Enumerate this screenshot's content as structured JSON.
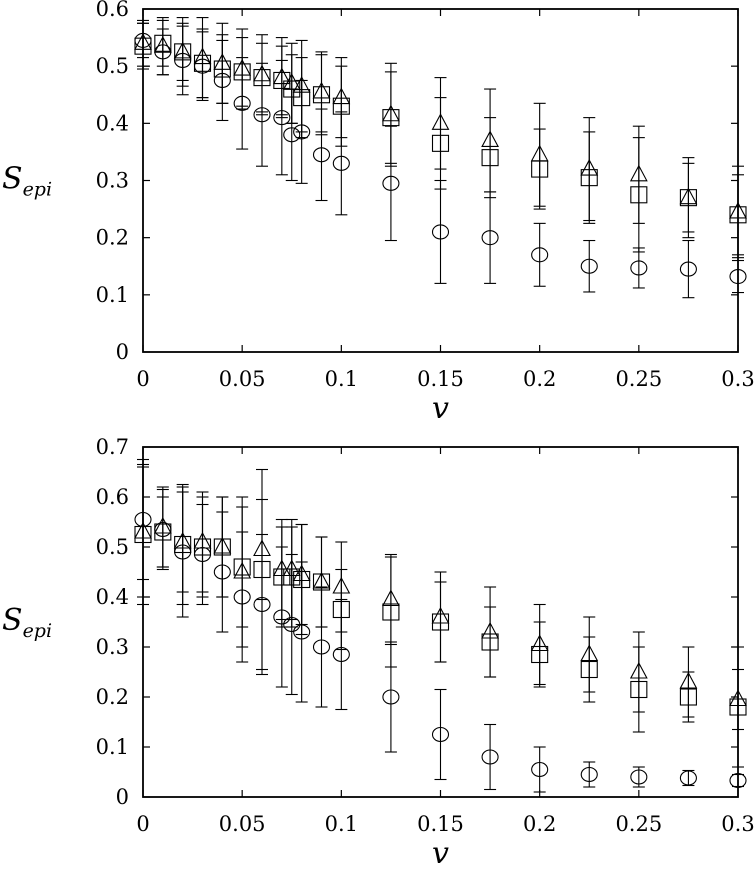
{
  "chart_data": [
    {
      "type": "scatter",
      "xlabel": "v",
      "ylabel": "S_epi",
      "ylabel_main": "S",
      "ylabel_sub": "epi",
      "xlim": [
        0,
        0.3
      ],
      "ylim": [
        0,
        0.6
      ],
      "x_ticks": [
        "0",
        "0.05",
        "0.1",
        "0.15",
        "0.2",
        "0.25",
        "0.3"
      ],
      "y_ticks": [
        "0",
        "0.1",
        "0.2",
        "0.3",
        "0.4",
        "0.5",
        "0.6"
      ],
      "grid": false,
      "legend": "none",
      "series": [
        {
          "marker": "triangle",
          "points": [
            {
              "x": 0,
              "y": 0.54,
              "err": 0.04
            },
            {
              "x": 0.01,
              "y": 0.535,
              "err": 0.05
            },
            {
              "x": 0.02,
              "y": 0.525,
              "err": 0.06
            },
            {
              "x": 0.03,
              "y": 0.515,
              "err": 0.07
            },
            {
              "x": 0.04,
              "y": 0.505,
              "err": 0.07
            },
            {
              "x": 0.05,
              "y": 0.495,
              "err": 0.07
            },
            {
              "x": 0.06,
              "y": 0.485,
              "err": 0.07
            },
            {
              "x": 0.07,
              "y": 0.48,
              "err": 0.07
            },
            {
              "x": 0.075,
              "y": 0.47,
              "err": 0.07
            },
            {
              "x": 0.08,
              "y": 0.465,
              "err": 0.08
            },
            {
              "x": 0.09,
              "y": 0.455,
              "err": 0.07
            },
            {
              "x": 0.1,
              "y": 0.445,
              "err": 0.07
            },
            {
              "x": 0.125,
              "y": 0.415,
              "err": 0.09
            },
            {
              "x": 0.15,
              "y": 0.4,
              "err": 0.08
            },
            {
              "x": 0.175,
              "y": 0.37,
              "err": 0.09
            },
            {
              "x": 0.2,
              "y": 0.345,
              "err": 0.09
            },
            {
              "x": 0.225,
              "y": 0.32,
              "err": 0.09
            },
            {
              "x": 0.25,
              "y": 0.31,
              "err": 0.085
            },
            {
              "x": 0.275,
              "y": 0.27,
              "err": 0.07
            },
            {
              "x": 0.3,
              "y": 0.245,
              "err": 0.08
            }
          ]
        },
        {
          "marker": "square",
          "points": [
            {
              "x": 0,
              "y": 0.535,
              "err": 0.04
            },
            {
              "x": 0.01,
              "y": 0.54,
              "err": 0.04
            },
            {
              "x": 0.02,
              "y": 0.525,
              "err": 0.05
            },
            {
              "x": 0.03,
              "y": 0.505,
              "err": 0.06
            },
            {
              "x": 0.04,
              "y": 0.495,
              "err": 0.06
            },
            {
              "x": 0.05,
              "y": 0.49,
              "err": 0.06
            },
            {
              "x": 0.06,
              "y": 0.48,
              "err": 0.06
            },
            {
              "x": 0.07,
              "y": 0.475,
              "err": 0.06
            },
            {
              "x": 0.075,
              "y": 0.46,
              "err": 0.06
            },
            {
              "x": 0.08,
              "y": 0.445,
              "err": 0.07
            },
            {
              "x": 0.09,
              "y": 0.45,
              "err": 0.07
            },
            {
              "x": 0.1,
              "y": 0.43,
              "err": 0.07
            },
            {
              "x": 0.125,
              "y": 0.41,
              "err": 0.08
            },
            {
              "x": 0.15,
              "y": 0.365,
              "err": 0.08
            },
            {
              "x": 0.175,
              "y": 0.34,
              "err": 0.07
            },
            {
              "x": 0.2,
              "y": 0.32,
              "err": 0.07
            },
            {
              "x": 0.225,
              "y": 0.305,
              "err": 0.08
            },
            {
              "x": 0.25,
              "y": 0.275,
              "err": 0.1
            },
            {
              "x": 0.275,
              "y": 0.27,
              "err": 0.06
            },
            {
              "x": 0.3,
              "y": 0.24,
              "err": 0.07
            }
          ]
        },
        {
          "marker": "circle",
          "points": [
            {
              "x": 0,
              "y": 0.545,
              "err": 0.03
            },
            {
              "x": 0.01,
              "y": 0.525,
              "err": 0.04
            },
            {
              "x": 0.02,
              "y": 0.51,
              "err": 0.06
            },
            {
              "x": 0.03,
              "y": 0.5,
              "err": 0.06
            },
            {
              "x": 0.04,
              "y": 0.475,
              "err": 0.07
            },
            {
              "x": 0.05,
              "y": 0.435,
              "err": 0.08
            },
            {
              "x": 0.06,
              "y": 0.415,
              "err": 0.09
            },
            {
              "x": 0.07,
              "y": 0.41,
              "err": 0.1
            },
            {
              "x": 0.075,
              "y": 0.38,
              "err": 0.08
            },
            {
              "x": 0.08,
              "y": 0.385,
              "err": 0.09
            },
            {
              "x": 0.09,
              "y": 0.345,
              "err": 0.08
            },
            {
              "x": 0.1,
              "y": 0.33,
              "err": 0.09
            },
            {
              "x": 0.125,
              "y": 0.295,
              "err": 0.1
            },
            {
              "x": 0.15,
              "y": 0.21,
              "err": 0.09
            },
            {
              "x": 0.175,
              "y": 0.2,
              "err": 0.08
            },
            {
              "x": 0.2,
              "y": 0.17,
              "err": 0.055
            },
            {
              "x": 0.225,
              "y": 0.15,
              "err": 0.045
            },
            {
              "x": 0.25,
              "y": 0.147,
              "err": 0.035
            },
            {
              "x": 0.275,
              "y": 0.145,
              "err": 0.05
            },
            {
              "x": 0.3,
              "y": 0.132,
              "err": 0.028
            }
          ]
        }
      ]
    },
    {
      "type": "scatter",
      "xlabel": "v",
      "ylabel": "S_epi",
      "ylabel_main": "S",
      "ylabel_sub": "epi",
      "xlim": [
        0,
        0.3
      ],
      "ylim": [
        0,
        0.7
      ],
      "x_ticks": [
        "0",
        "0.05",
        "0.1",
        "0.15",
        "0.2",
        "0.25",
        "0.3"
      ],
      "y_ticks": [
        "0",
        "0.1",
        "0.2",
        "0.3",
        "0.4",
        "0.5",
        "0.6",
        "0.7"
      ],
      "grid": false,
      "legend": "none",
      "series": [
        {
          "marker": "triangle",
          "points": [
            {
              "x": 0,
              "y": 0.53,
              "err": 0.13
            },
            {
              "x": 0.01,
              "y": 0.54,
              "err": 0.08
            },
            {
              "x": 0.02,
              "y": 0.51,
              "err": 0.1
            },
            {
              "x": 0.03,
              "y": 0.51,
              "err": 0.1
            },
            {
              "x": 0.04,
              "y": 0.5,
              "err": 0.1
            },
            {
              "x": 0.05,
              "y": 0.45,
              "err": 0.15
            },
            {
              "x": 0.06,
              "y": 0.495,
              "err": 0.1
            },
            {
              "x": 0.07,
              "y": 0.455,
              "err": 0.1
            },
            {
              "x": 0.075,
              "y": 0.455,
              "err": 0.1
            },
            {
              "x": 0.08,
              "y": 0.445,
              "err": 0.1
            },
            {
              "x": 0.09,
              "y": 0.43,
              "err": 0.09
            },
            {
              "x": 0.1,
              "y": 0.42,
              "err": 0.09
            },
            {
              "x": 0.125,
              "y": 0.395,
              "err": 0.09
            },
            {
              "x": 0.15,
              "y": 0.36,
              "err": 0.09
            },
            {
              "x": 0.175,
              "y": 0.33,
              "err": 0.09
            },
            {
              "x": 0.2,
              "y": 0.305,
              "err": 0.08
            },
            {
              "x": 0.225,
              "y": 0.285,
              "err": 0.075
            },
            {
              "x": 0.25,
              "y": 0.25,
              "err": 0.08
            },
            {
              "x": 0.275,
              "y": 0.23,
              "err": 0.07
            },
            {
              "x": 0.3,
              "y": 0.195,
              "err": 0.06
            }
          ]
        },
        {
          "marker": "square",
          "points": [
            {
              "x": 0,
              "y": 0.525,
              "err": 0.14
            },
            {
              "x": 0.01,
              "y": 0.53,
              "err": 0.07
            },
            {
              "x": 0.02,
              "y": 0.505,
              "err": 0.12
            },
            {
              "x": 0.03,
              "y": 0.5,
              "err": 0.1
            },
            {
              "x": 0.04,
              "y": 0.5,
              "err": 0.1
            },
            {
              "x": 0.05,
              "y": 0.46,
              "err": 0.12
            },
            {
              "x": 0.06,
              "y": 0.455,
              "err": 0.2
            },
            {
              "x": 0.07,
              "y": 0.44,
              "err": 0.1
            },
            {
              "x": 0.075,
              "y": 0.44,
              "err": 0.1
            },
            {
              "x": 0.08,
              "y": 0.435,
              "err": 0.11
            },
            {
              "x": 0.09,
              "y": 0.43,
              "err": 0.09
            },
            {
              "x": 0.1,
              "y": 0.375,
              "err": 0.08
            },
            {
              "x": 0.125,
              "y": 0.37,
              "err": 0.11
            },
            {
              "x": 0.15,
              "y": 0.35,
              "err": 0.08
            },
            {
              "x": 0.175,
              "y": 0.31,
              "err": 0.07
            },
            {
              "x": 0.2,
              "y": 0.285,
              "err": 0.065
            },
            {
              "x": 0.225,
              "y": 0.255,
              "err": 0.065
            },
            {
              "x": 0.25,
              "y": 0.215,
              "err": 0.085
            },
            {
              "x": 0.275,
              "y": 0.2,
              "err": 0.05
            },
            {
              "x": 0.3,
              "y": 0.18,
              "err": 0.12
            }
          ]
        },
        {
          "marker": "circle",
          "points": [
            {
              "x": 0,
              "y": 0.555,
              "err": 0.12
            },
            {
              "x": 0.01,
              "y": 0.535,
              "err": 0.08
            },
            {
              "x": 0.02,
              "y": 0.49,
              "err": 0.13
            },
            {
              "x": 0.03,
              "y": 0.485,
              "err": 0.1
            },
            {
              "x": 0.04,
              "y": 0.45,
              "err": 0.12
            },
            {
              "x": 0.05,
              "y": 0.4,
              "err": 0.13
            },
            {
              "x": 0.06,
              "y": 0.385,
              "err": 0.14
            },
            {
              "x": 0.07,
              "y": 0.36,
              "err": 0.14
            },
            {
              "x": 0.075,
              "y": 0.345,
              "err": 0.14
            },
            {
              "x": 0.08,
              "y": 0.33,
              "err": 0.14
            },
            {
              "x": 0.09,
              "y": 0.3,
              "err": 0.12
            },
            {
              "x": 0.1,
              "y": 0.285,
              "err": 0.11
            },
            {
              "x": 0.125,
              "y": 0.2,
              "err": 0.11
            },
            {
              "x": 0.15,
              "y": 0.125,
              "err": 0.09
            },
            {
              "x": 0.175,
              "y": 0.08,
              "err": 0.065
            },
            {
              "x": 0.2,
              "y": 0.055,
              "err": 0.045
            },
            {
              "x": 0.225,
              "y": 0.045,
              "err": 0.025
            },
            {
              "x": 0.25,
              "y": 0.04,
              "err": 0.02
            },
            {
              "x": 0.275,
              "y": 0.038,
              "err": 0.015
            },
            {
              "x": 0.3,
              "y": 0.033,
              "err": 0.012
            }
          ]
        }
      ]
    }
  ]
}
